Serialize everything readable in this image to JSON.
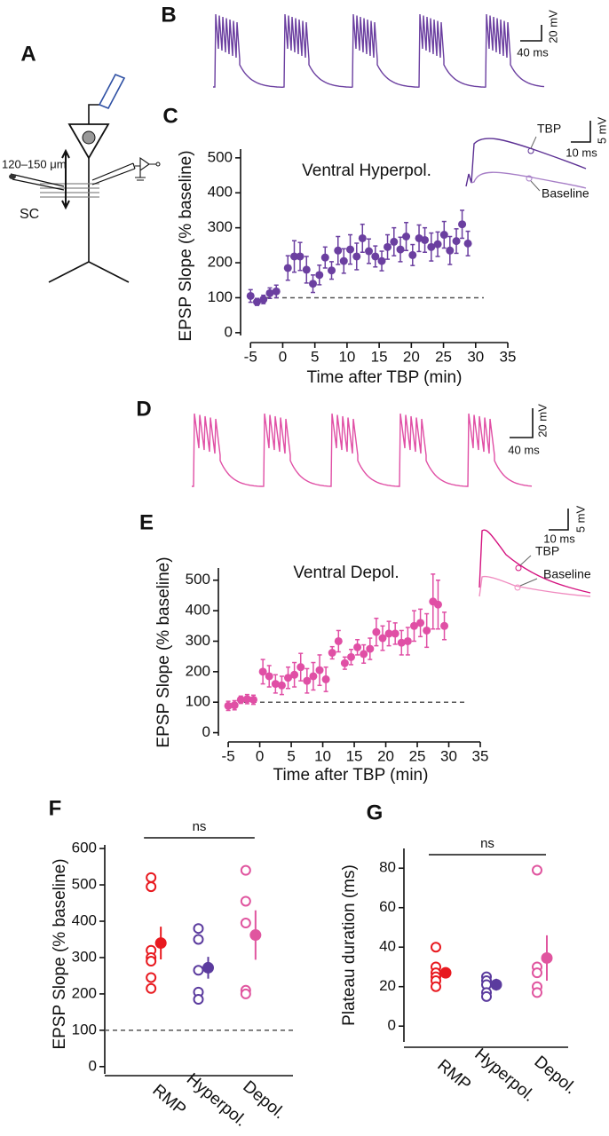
{
  "figure": {
    "panel_a": {
      "label": "A",
      "distance": "120–150 μm",
      "region": "SC"
    },
    "panel_b": {
      "label": "B",
      "scale_voltage": "20 mV",
      "scale_time": "40 ms"
    },
    "panel_d": {
      "label": "D",
      "scale_voltage": "20 mV",
      "scale_time": "40 ms"
    }
  },
  "chart_data": [
    {
      "type": "scatter",
      "panel": "C",
      "annotation": "Ventral Hyperpol.",
      "x_label": "Time after TBP (min)",
      "y_label": "EPSP Slope (% baseline)",
      "color": "#6b3fa0",
      "x": [
        -5,
        -4,
        -3,
        -2,
        -1,
        0.8,
        1.8,
        2.7,
        3.7,
        4.7,
        5.7,
        6.6,
        7.6,
        8.6,
        9.5,
        10.5,
        11.5,
        12.4,
        13.4,
        14.4,
        15.4,
        16.3,
        17.3,
        18.3,
        19.2,
        20.2,
        21.2,
        22.1,
        23.1,
        24.1,
        25.1,
        26.0,
        27.0,
        27.9,
        28.8
      ],
      "values": [
        105,
        88,
        95,
        113,
        118,
        185,
        218,
        218,
        180,
        140,
        165,
        215,
        178,
        235,
        205,
        238,
        218,
        270,
        233,
        218,
        205,
        245,
        260,
        238,
        275,
        222,
        270,
        265,
        245,
        253,
        280,
        235,
        262,
        310,
        255
      ],
      "errors": [
        18,
        10,
        12,
        15,
        18,
        35,
        45,
        40,
        38,
        25,
        28,
        30,
        25,
        40,
        35,
        42,
        38,
        40,
        35,
        30,
        28,
        35,
        40,
        35,
        40,
        30,
        38,
        35,
        40,
        35,
        38,
        40,
        35,
        40,
        35
      ],
      "reference_line": 100,
      "xlim": [
        -6,
        35
      ],
      "ylim": [
        -8,
        525
      ],
      "xticks": [
        -5,
        0,
        5,
        10,
        15,
        20,
        25,
        30,
        35
      ],
      "yticks": [
        0,
        100,
        200,
        300,
        400,
        500
      ],
      "inset": {
        "after_label": "TBP",
        "before_label": "Baseline",
        "scale_voltage": "5 mV",
        "scale_time": "10 ms"
      }
    },
    {
      "type": "scatter",
      "panel": "E",
      "annotation": "Ventral Depol.",
      "x_label": "Time after TBP (min)",
      "y_label": "EPSP Slope (% baseline)",
      "color": "#e04fa5",
      "x": [
        -5,
        -4,
        -3,
        -2,
        -1,
        0.5,
        1.5,
        2.5,
        3.5,
        4.5,
        5.5,
        6.5,
        7.5,
        8.5,
        9.5,
        10.5,
        11.5,
        12.5,
        13.5,
        14.5,
        15.5,
        16.5,
        17.5,
        18.5,
        19.5,
        20.5,
        21.5,
        22.5,
        23.5,
        24.5,
        25.5,
        26.5,
        27.5,
        28.3,
        29.3
      ],
      "values": [
        88,
        90,
        108,
        110,
        108,
        200,
        185,
        160,
        155,
        180,
        190,
        215,
        170,
        185,
        205,
        175,
        262,
        300,
        228,
        248,
        280,
        258,
        275,
        330,
        310,
        325,
        325,
        295,
        300,
        350,
        360,
        335,
        430,
        420,
        350
      ],
      "errors": [
        15,
        15,
        12,
        15,
        15,
        40,
        35,
        30,
        30,
        35,
        40,
        45,
        40,
        45,
        50,
        40,
        20,
        35,
        20,
        25,
        25,
        30,
        35,
        45,
        40,
        40,
        35,
        40,
        45,
        50,
        45,
        55,
        90,
        80,
        45
      ],
      "reference_line": 100,
      "xlim": [
        -6,
        35
      ],
      "ylim": [
        -10,
        540
      ],
      "xticks": [
        -5,
        0,
        5,
        10,
        15,
        20,
        25,
        30,
        35
      ],
      "yticks": [
        0,
        100,
        200,
        300,
        400,
        500
      ],
      "inset": {
        "after_label": "TBP",
        "before_label": "Baseline",
        "scale_voltage": "5 mV",
        "scale_time": "10 ms"
      }
    },
    {
      "type": "dotplot",
      "panel": "F",
      "y_label": "EPSP Slope (% baseline)",
      "categories": [
        "RMP",
        "Hyperpol.",
        "Depol."
      ],
      "colors": [
        "#e8191f",
        "#5b3b9e",
        "#e0559f"
      ],
      "points": [
        [
          520,
          495,
          320,
          300,
          290,
          245,
          215
        ],
        [
          380,
          350,
          265,
          205,
          185
        ],
        [
          540,
          455,
          395,
          210,
          200
        ]
      ],
      "means": [
        340,
        272,
        362
      ],
      "errors": [
        45,
        30,
        68
      ],
      "reference_line": 100,
      "significance": "ns",
      "ylim": [
        -20,
        610
      ],
      "yticks": [
        0,
        100,
        200,
        300,
        400,
        500,
        600
      ]
    },
    {
      "type": "dotplot",
      "panel": "G",
      "y_label": "Plateau duration (ms)",
      "categories": [
        "RMP",
        "Hyperpol.",
        "Depol."
      ],
      "colors": [
        "#e8191f",
        "#5b3b9e",
        "#e0559f"
      ],
      "points": [
        [
          40,
          30,
          27,
          25,
          23,
          20
        ],
        [
          25,
          23,
          21,
          17,
          15
        ],
        [
          79,
          30,
          27,
          20,
          17
        ]
      ],
      "means": [
        27,
        21,
        34.5
      ],
      "errors": [
        2,
        3,
        11.5
      ],
      "significance": "ns",
      "ylim": [
        -8,
        90
      ],
      "yticks": [
        0,
        20,
        40,
        60,
        80
      ]
    }
  ]
}
